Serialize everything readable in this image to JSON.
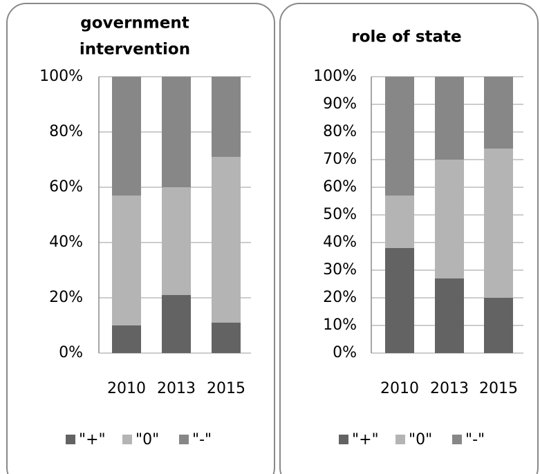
{
  "chart_data": [
    {
      "type": "stacked_bar",
      "title": [
        "government",
        "intervention"
      ],
      "categories": [
        "2010",
        "2013",
        "2015"
      ],
      "series": [
        {
          "name": "\"+\"",
          "color": "#636363",
          "values": [
            10,
            21,
            11
          ]
        },
        {
          "name": "\"0\"",
          "color": "#b4b4b4",
          "values": [
            47,
            39,
            60
          ]
        },
        {
          "name": "\"-\"",
          "color": "#878787",
          "values": [
            43,
            40,
            29
          ]
        }
      ],
      "ylim": [
        0,
        100
      ],
      "yticks": [
        {
          "value": 0,
          "label": "0%"
        },
        {
          "value": 20,
          "label": "20%"
        },
        {
          "value": 40,
          "label": "40%"
        },
        {
          "value": 60,
          "label": "60%"
        },
        {
          "value": 80,
          "label": "80%"
        },
        {
          "value": 100,
          "label": "100%"
        }
      ],
      "grid": true
    },
    {
      "type": "stacked_bar",
      "title": [
        "role of state"
      ],
      "categories": [
        "2010",
        "2013",
        "2015"
      ],
      "series": [
        {
          "name": "\"+\"",
          "color": "#636363",
          "values": [
            38,
            27,
            20
          ]
        },
        {
          "name": "\"0\"",
          "color": "#b4b4b4",
          "values": [
            19,
            43,
            54
          ]
        },
        {
          "name": "\"-\"",
          "color": "#878787",
          "values": [
            43,
            30,
            26
          ]
        }
      ],
      "ylim": [
        0,
        100
      ],
      "yticks": [
        {
          "value": 0,
          "label": "0%"
        },
        {
          "value": 10,
          "label": "10%"
        },
        {
          "value": 20,
          "label": "20%"
        },
        {
          "value": 30,
          "label": "30%"
        },
        {
          "value": 40,
          "label": "40%"
        },
        {
          "value": 50,
          "label": "50%"
        },
        {
          "value": 60,
          "label": "60%"
        },
        {
          "value": 70,
          "label": "70%"
        },
        {
          "value": 80,
          "label": "80%"
        },
        {
          "value": 90,
          "label": "90%"
        },
        {
          "value": 100,
          "label": "100%"
        }
      ],
      "grid": true
    }
  ]
}
